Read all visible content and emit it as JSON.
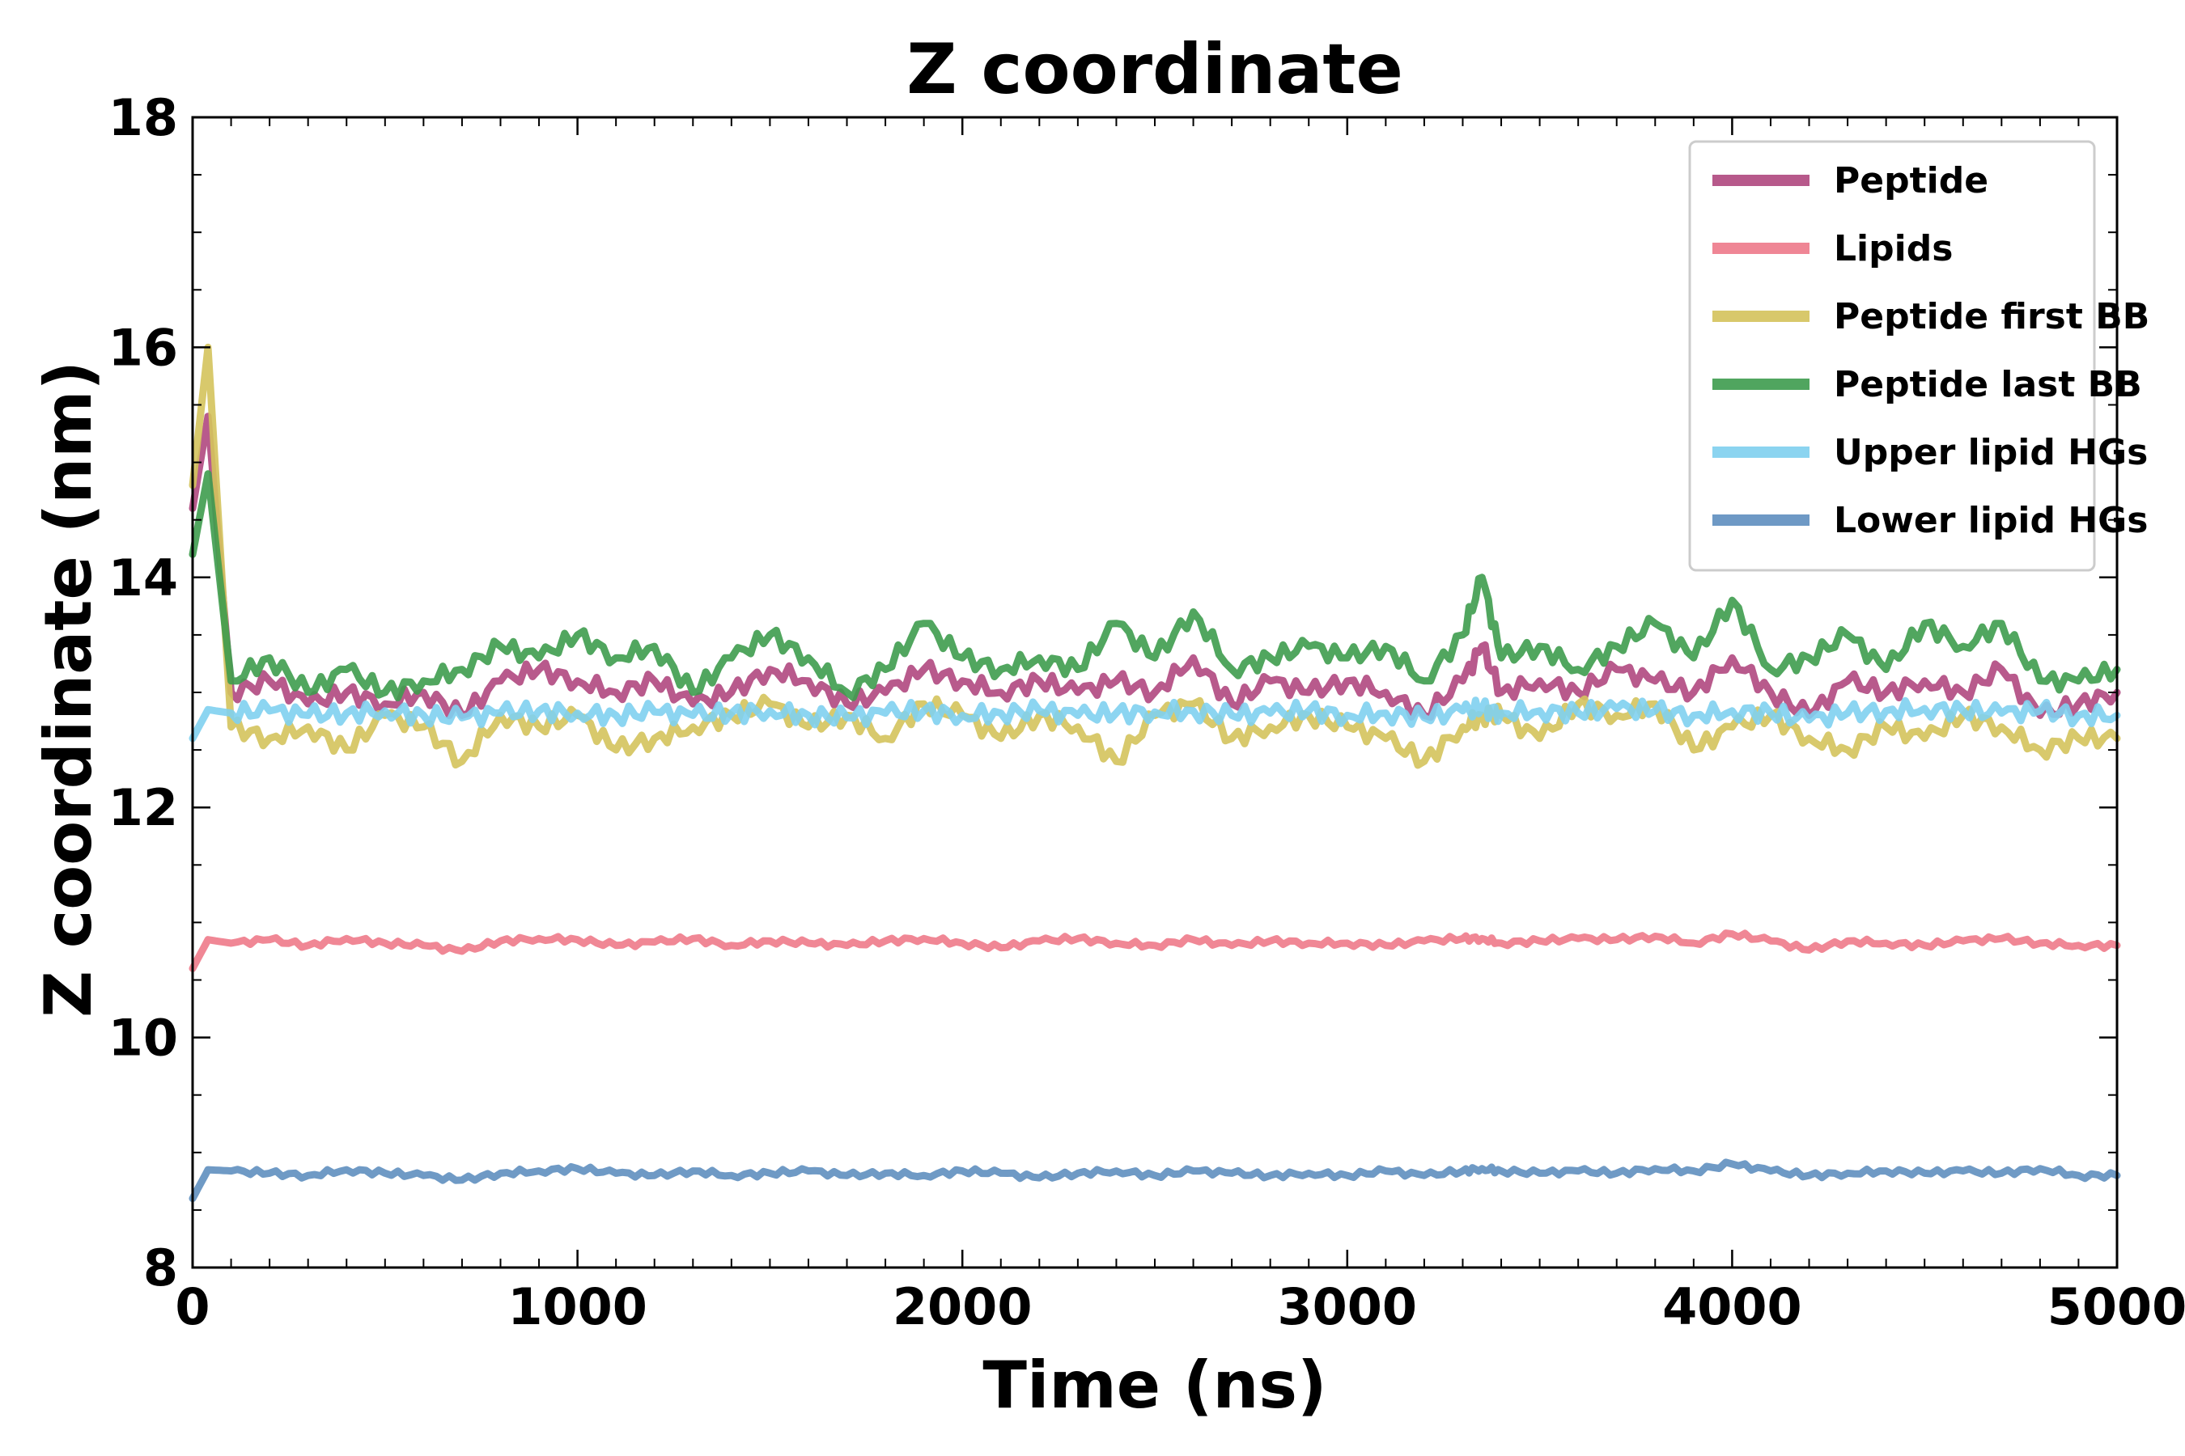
{
  "chart_data": {
    "type": "line",
    "title": "Z coordinate",
    "xlabel": "Time (ns)",
    "ylabel": "Z coordinate (nm)",
    "xlim": [
      0,
      5000
    ],
    "ylim": [
      8,
      18
    ],
    "xticks": [
      0,
      1000,
      2000,
      3000,
      4000,
      5000
    ],
    "xtick_labels": [
      "0",
      "1000",
      "2000",
      "3000",
      "4000",
      "5000"
    ],
    "yticks": [
      8,
      10,
      12,
      14,
      16,
      18
    ],
    "ytick_labels": [
      "8",
      "10",
      "12",
      "14",
      "16",
      "18"
    ],
    "grid": false,
    "legend_position": "top-right",
    "x": [
      0,
      40,
      100,
      200,
      300,
      400,
      500,
      600,
      700,
      800,
      900,
      1000,
      1100,
      1200,
      1300,
      1400,
      1500,
      1600,
      1700,
      1800,
      1900,
      2000,
      2100,
      2200,
      2300,
      2400,
      2500,
      2600,
      2700,
      2800,
      2900,
      3000,
      3100,
      3200,
      3300,
      3350,
      3400,
      3500,
      3600,
      3700,
      3800,
      3900,
      4000,
      4100,
      4200,
      4300,
      4400,
      4500,
      4600,
      4700,
      4800,
      4900,
      5000
    ],
    "series": [
      {
        "name": "Peptide",
        "color": "#b0487f",
        "values": [
          14.6,
          15.4,
          13.0,
          13.1,
          12.9,
          13.0,
          12.9,
          13.0,
          12.8,
          13.1,
          13.2,
          13.1,
          13.0,
          13.1,
          12.9,
          13.0,
          13.2,
          13.1,
          12.9,
          13.0,
          13.2,
          13.1,
          13.0,
          13.1,
          13.0,
          13.1,
          13.0,
          13.3,
          12.9,
          13.1,
          13.0,
          13.1,
          13.0,
          12.8,
          13.1,
          13.4,
          13.0,
          13.1,
          13.0,
          13.2,
          13.1,
          13.0,
          13.3,
          13.0,
          12.8,
          13.1,
          13.0,
          13.1,
          13.0,
          13.2,
          12.8,
          12.9,
          13.0
        ]
      },
      {
        "name": "Lipids",
        "color": "#ee7a8a",
        "values": [
          10.6,
          10.85,
          10.82,
          10.85,
          10.8,
          10.86,
          10.82,
          10.8,
          10.75,
          10.84,
          10.86,
          10.85,
          10.8,
          10.83,
          10.86,
          10.8,
          10.84,
          10.82,
          10.8,
          10.84,
          10.86,
          10.82,
          10.78,
          10.84,
          10.86,
          10.82,
          10.8,
          10.85,
          10.8,
          10.84,
          10.82,
          10.82,
          10.8,
          10.84,
          10.86,
          10.86,
          10.82,
          10.84,
          10.86,
          10.85,
          10.88,
          10.82,
          10.9,
          10.84,
          10.76,
          10.84,
          10.82,
          10.8,
          10.84,
          10.86,
          10.82,
          10.8,
          10.8
        ]
      },
      {
        "name": "Peptide first BB",
        "color": "#d4c35c",
        "values": [
          14.8,
          16.0,
          12.7,
          12.6,
          12.7,
          12.5,
          12.8,
          12.7,
          12.4,
          12.8,
          12.7,
          12.8,
          12.5,
          12.6,
          12.7,
          12.8,
          12.9,
          12.7,
          12.8,
          12.6,
          12.9,
          12.8,
          12.6,
          12.8,
          12.7,
          12.4,
          12.8,
          12.9,
          12.6,
          12.7,
          12.8,
          12.7,
          12.6,
          12.4,
          12.7,
          12.8,
          12.8,
          12.6,
          12.9,
          12.8,
          12.9,
          12.5,
          12.7,
          12.8,
          12.6,
          12.5,
          12.7,
          12.6,
          12.8,
          12.7,
          12.5,
          12.6,
          12.6
        ]
      },
      {
        "name": "Peptide last BB",
        "color": "#3e9c4e",
        "values": [
          14.2,
          14.9,
          13.1,
          13.3,
          13.0,
          13.2,
          13.0,
          13.1,
          13.2,
          13.4,
          13.3,
          13.5,
          13.3,
          13.4,
          13.0,
          13.3,
          13.5,
          13.3,
          13.0,
          13.2,
          13.6,
          13.3,
          13.2,
          13.3,
          13.2,
          13.6,
          13.3,
          13.7,
          13.2,
          13.3,
          13.4,
          13.3,
          13.4,
          13.1,
          13.5,
          14.0,
          13.3,
          13.4,
          13.2,
          13.4,
          13.6,
          13.3,
          13.8,
          13.2,
          13.3,
          13.5,
          13.2,
          13.6,
          13.4,
          13.6,
          13.1,
          13.1,
          13.2
        ]
      },
      {
        "name": "Upper lipid HGs",
        "color": "#7fd0ef",
        "values": [
          12.6,
          12.85,
          12.82,
          12.84,
          12.8,
          12.82,
          12.84,
          12.8,
          12.78,
          12.82,
          12.84,
          12.82,
          12.8,
          12.83,
          12.8,
          12.82,
          12.84,
          12.8,
          12.78,
          12.82,
          12.84,
          12.8,
          12.82,
          12.84,
          12.8,
          12.82,
          12.83,
          12.84,
          12.8,
          12.82,
          12.84,
          12.8,
          12.82,
          12.78,
          12.84,
          12.86,
          12.82,
          12.84,
          12.82,
          12.86,
          12.84,
          12.8,
          12.84,
          12.82,
          12.76,
          12.82,
          12.84,
          12.86,
          12.84,
          12.82,
          12.84,
          12.8,
          12.8
        ]
      },
      {
        "name": "Lower lipid HGs",
        "color": "#5f8fbf",
        "values": [
          8.6,
          8.85,
          8.84,
          8.82,
          8.8,
          8.85,
          8.82,
          8.8,
          8.76,
          8.82,
          8.84,
          8.86,
          8.82,
          8.8,
          8.84,
          8.8,
          8.82,
          8.84,
          8.8,
          8.82,
          8.8,
          8.84,
          8.82,
          8.78,
          8.82,
          8.84,
          8.8,
          8.84,
          8.82,
          8.8,
          8.82,
          8.8,
          8.84,
          8.8,
          8.84,
          8.86,
          8.84,
          8.82,
          8.84,
          8.82,
          8.86,
          8.84,
          8.9,
          8.84,
          8.8,
          8.82,
          8.84,
          8.82,
          8.84,
          8.82,
          8.86,
          8.8,
          8.8
        ]
      }
    ]
  }
}
